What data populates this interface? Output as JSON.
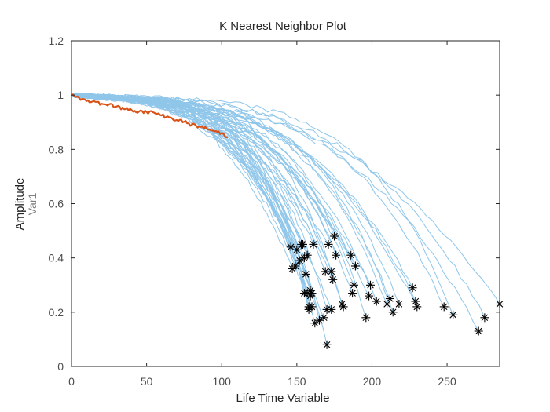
{
  "chart_data": {
    "type": "line",
    "title": "K Nearest Neighbor Plot",
    "xlabel": "Life Time Variable",
    "ylabel": "Amplitude",
    "ylabel_secondary": "Var1",
    "xlim": [
      0,
      285
    ],
    "ylim": [
      0,
      1.2
    ],
    "xticks": [
      0,
      50,
      100,
      150,
      200,
      250
    ],
    "yticks": [
      0,
      0.2,
      0.4,
      0.6,
      0.8,
      1,
      1.2
    ],
    "grid": false,
    "colors": {
      "neighbors": "#8fc6ea",
      "highlight": "#d95319",
      "endpoint": "#000000",
      "axis": "#262626"
    },
    "highlight_series": {
      "x": [
        0,
        5,
        10,
        15,
        20,
        25,
        30,
        35,
        40,
        45,
        50,
        55,
        60,
        65,
        70,
        75,
        80,
        85,
        90,
        95,
        100,
        104
      ],
      "values": [
        1.0,
        0.99,
        0.978,
        0.978,
        0.968,
        0.966,
        0.958,
        0.948,
        0.945,
        0.94,
        0.938,
        0.935,
        0.925,
        0.918,
        0.908,
        0.902,
        0.89,
        0.884,
        0.876,
        0.866,
        0.86,
        0.845
      ]
    },
    "neighbor_endpoints": [
      [
        146,
        0.44
      ],
      [
        147,
        0.36
      ],
      [
        149,
        0.37
      ],
      [
        150,
        0.43
      ],
      [
        152,
        0.39
      ],
      [
        153,
        0.45
      ],
      [
        154,
        0.45
      ],
      [
        155,
        0.4
      ],
      [
        155,
        0.27
      ],
      [
        156,
        0.34
      ],
      [
        157,
        0.41
      ],
      [
        157,
        0.27
      ],
      [
        158,
        0.21
      ],
      [
        158,
        0.22
      ],
      [
        159,
        0.28
      ],
      [
        159,
        0.26
      ],
      [
        160,
        0.27
      ],
      [
        160,
        0.22
      ],
      [
        161,
        0.45
      ],
      [
        162,
        0.16
      ],
      [
        165,
        0.17
      ],
      [
        168,
        0.18
      ],
      [
        169,
        0.35
      ],
      [
        170,
        0.08
      ],
      [
        170,
        0.21
      ],
      [
        171,
        0.45
      ],
      [
        173,
        0.35
      ],
      [
        173,
        0.21
      ],
      [
        174,
        0.32
      ],
      [
        175,
        0.48
      ],
      [
        176,
        0.41
      ],
      [
        180,
        0.23
      ],
      [
        181,
        0.22
      ],
      [
        186,
        0.41
      ],
      [
        187,
        0.27
      ],
      [
        188,
        0.3
      ],
      [
        189,
        0.37
      ],
      [
        196,
        0.18
      ],
      [
        198,
        0.26
      ],
      [
        199,
        0.3
      ],
      [
        203,
        0.24
      ],
      [
        210,
        0.23
      ],
      [
        212,
        0.25
      ],
      [
        214,
        0.2
      ],
      [
        218,
        0.23
      ],
      [
        227,
        0.29
      ],
      [
        229,
        0.24
      ],
      [
        230,
        0.22
      ],
      [
        248,
        0.22
      ],
      [
        254,
        0.19
      ],
      [
        271,
        0.13
      ],
      [
        275,
        0.18
      ],
      [
        285,
        0.23
      ]
    ]
  }
}
